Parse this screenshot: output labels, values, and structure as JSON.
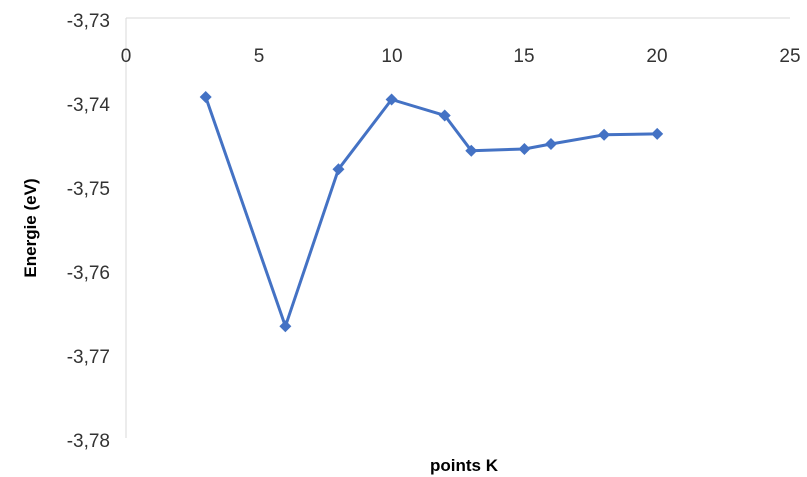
{
  "chart_data": {
    "type": "scatter",
    "title": "",
    "xlabel": "points K",
    "ylabel": "Energie (eV)",
    "xlim": [
      0,
      25
    ],
    "ylim": [
      -3.78,
      -3.73
    ],
    "x_ticks": [
      "0",
      "5",
      "10",
      "15",
      "20",
      "25"
    ],
    "y_ticks": [
      "-3,73",
      "-3,74",
      "-3,75",
      "-3,76",
      "-3,77",
      "-3,78"
    ],
    "x_axis_position": "top",
    "grid": false,
    "legend": "none",
    "marker": "diamond",
    "line": "straight",
    "series": [
      {
        "color": "#4472C4",
        "x": [
          3,
          6,
          8,
          10,
          12,
          13,
          15,
          16,
          18,
          20
        ],
        "y": [
          -3.7394,
          -3.7667,
          -3.748,
          -3.7397,
          -3.7416,
          -3.7458,
          -3.7456,
          -3.745,
          -3.7439,
          -3.7438
        ]
      }
    ]
  }
}
